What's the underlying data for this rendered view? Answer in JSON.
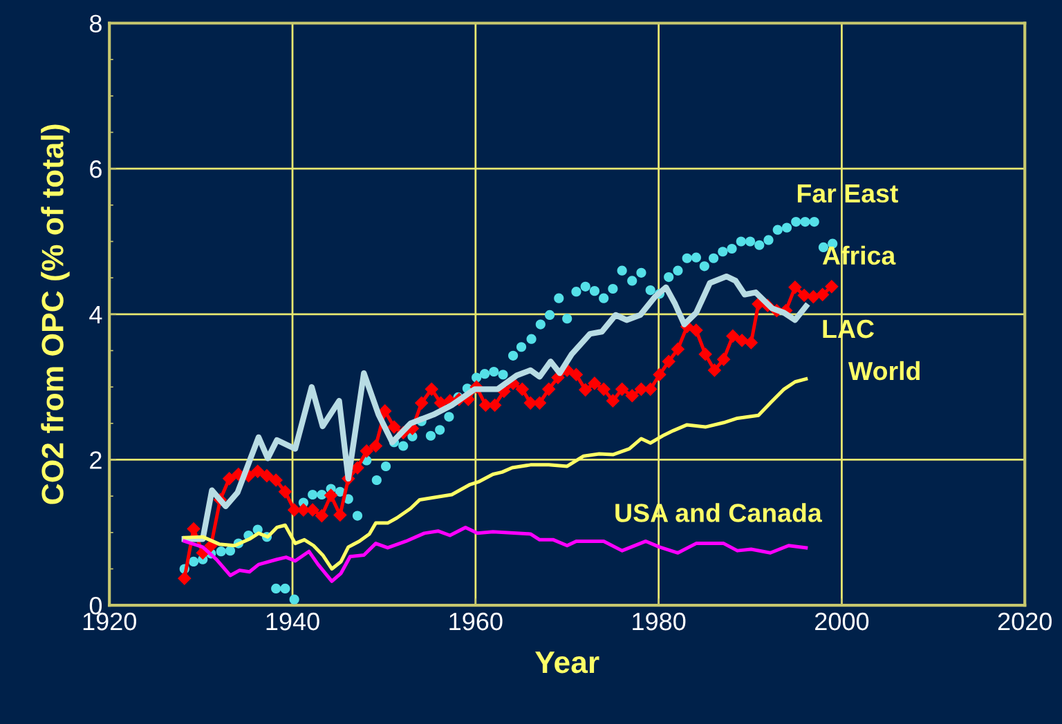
{
  "chart_data": {
    "type": "line",
    "xlabel": "Year",
    "ylabel": "CO2 from OPC (% of total)",
    "xlim": [
      1920,
      2020
    ],
    "xticks": [
      1920,
      1940,
      1960,
      1980,
      2000,
      2020
    ],
    "ylim": [
      0,
      8
    ],
    "yticks": [
      0,
      2,
      4,
      6,
      8
    ],
    "grid": true,
    "legend": false,
    "series": [
      {
        "name": "Far East",
        "type": "scatter",
        "marker": "circle",
        "color": "#55e0e8",
        "x": [
          1928.2,
          1929.2,
          1930.2,
          1931.1,
          1932.2,
          1933.2,
          1934.1,
          1935.2,
          1936.2,
          1937.2,
          1938.2,
          1939.2,
          1940.2,
          1941.2,
          1942.2,
          1943.2,
          1944.2,
          1945.2,
          1946.1,
          1947.1,
          1948.1,
          1949.2,
          1950.2,
          1951.1,
          1952.1,
          1953.1,
          1954.1,
          1955.1,
          1956.1,
          1957.1,
          1958.1,
          1959.1,
          1960.1,
          1961.0,
          1962.0,
          1963.0,
          1964.1,
          1965.0,
          1966.1,
          1967.1,
          1968.1,
          1969.1,
          1970,
          1971,
          1972,
          1973,
          1974,
          1975,
          1976,
          1977.1,
          1978.1,
          1979.1,
          1980.1,
          1981.1,
          1982.1,
          1983.1,
          1984.1,
          1985,
          1986,
          1987,
          1988,
          1989,
          1990,
          1991,
          1992,
          1993,
          1994,
          1995,
          1996,
          1997,
          1998,
          1999
        ],
        "values": [
          0.5,
          0.6,
          0.63,
          0.71,
          0.74,
          0.75,
          0.85,
          0.96,
          1.04,
          0.94,
          0.23,
          0.23,
          0.08,
          1.41,
          1.52,
          1.52,
          1.6,
          1.56,
          1.46,
          1.23,
          1.99,
          1.72,
          1.91,
          2.24,
          2.19,
          2.32,
          2.53,
          2.33,
          2.41,
          2.59,
          2.86,
          2.98,
          3.13,
          3.18,
          3.21,
          3.17,
          3.43,
          3.55,
          3.66,
          3.86,
          3.99,
          4.22,
          3.94,
          4.31,
          4.38,
          4.32,
          4.22,
          4.35,
          4.6,
          4.46,
          4.57,
          4.33,
          4.28,
          4.51,
          4.6,
          4.77,
          4.78,
          4.66,
          4.77,
          4.86,
          4.9,
          5.0,
          5.0,
          4.95,
          5.02,
          5.16,
          5.19,
          5.27,
          5.27,
          5.27,
          4.92,
          4.97
        ]
      },
      {
        "name": "Africa",
        "marker": "diamond",
        "color": "#ff0000",
        "x": [
          1928.2,
          1929.2,
          1930.2,
          1931.1,
          1932.1,
          1933.1,
          1934.1,
          1935.2,
          1936.2,
          1937.2,
          1938.2,
          1939.2,
          1940.2,
          1941.2,
          1942.2,
          1943.2,
          1944.2,
          1945.2,
          1946.1,
          1947.1,
          1948.1,
          1949.1,
          1950.1,
          1951.1,
          1952.1,
          1953.1,
          1954.1,
          1955.2,
          1956.2,
          1957.2,
          1958.2,
          1959.2,
          1960.1,
          1961.1,
          1962.1,
          1963.1,
          1964.1,
          1965.1,
          1966,
          1967,
          1968,
          1969,
          1970,
          1971,
          1972,
          1973,
          1974,
          1975,
          1976,
          1977.1,
          1978.1,
          1979.1,
          1980.1,
          1981.1,
          1982.1,
          1983.1,
          1984.1,
          1985.1,
          1986.1,
          1987.1,
          1988.1,
          1989.1,
          1990.1,
          1990.9,
          1991.9,
          1992.9,
          1993.9,
          1994.9,
          1995.9,
          1996.9,
          1997.9,
          1998.9
        ],
        "values": [
          0.37,
          1.05,
          0.72,
          0.82,
          1.45,
          1.74,
          1.8,
          1.78,
          1.84,
          1.78,
          1.72,
          1.56,
          1.31,
          1.31,
          1.31,
          1.23,
          1.51,
          1.24,
          1.74,
          1.89,
          2.12,
          2.19,
          2.67,
          2.45,
          2.37,
          2.43,
          2.78,
          2.97,
          2.78,
          2.81,
          2.83,
          2.83,
          3.0,
          2.75,
          2.75,
          2.94,
          3.05,
          2.97,
          2.78,
          2.78,
          2.97,
          3.13,
          3.23,
          3.17,
          2.96,
          3.05,
          2.97,
          2.81,
          2.97,
          2.88,
          2.97,
          2.97,
          3.17,
          3.35,
          3.52,
          3.83,
          3.78,
          3.45,
          3.23,
          3.38,
          3.7,
          3.64,
          3.61,
          4.14,
          4.12,
          4.05,
          4.05,
          4.37,
          4.26,
          4.24,
          4.27,
          4.38
        ]
      },
      {
        "name": "LAC",
        "marker": "none",
        "color": "#b8dce4",
        "x": [
          1928.2,
          1930.2,
          1931.2,
          1932.7,
          1934,
          1936.3,
          1937.3,
          1938.3,
          1940.3,
          1942.1,
          1943.3,
          1945.1,
          1946.1,
          1947.8,
          1949.4,
          1950.9,
          1952.9,
          1955.4,
          1957.4,
          1959.9,
          1962.4,
          1964.5,
          1966,
          1967,
          1968.2,
          1969.2,
          1970.5,
          1972.5,
          1973.8,
          1975.3,
          1976.5,
          1978,
          1979.6,
          1980.8,
          1981.8,
          1982.8,
          1984.1,
          1985.6,
          1987.4,
          1988.4,
          1989.4,
          1990.6,
          1992.4,
          1993.7,
          1994.9,
          1996.1
        ],
        "values": [
          0.91,
          0.91,
          1.58,
          1.36,
          1.55,
          2.31,
          2.02,
          2.27,
          2.15,
          3.0,
          2.46,
          2.81,
          1.74,
          3.19,
          2.62,
          2.24,
          2.5,
          2.62,
          2.75,
          2.97,
          2.97,
          3.16,
          3.23,
          3.14,
          3.35,
          3.19,
          3.45,
          3.73,
          3.76,
          3.99,
          3.92,
          3.99,
          4.24,
          4.37,
          4.14,
          3.86,
          4.02,
          4.43,
          4.52,
          4.46,
          4.27,
          4.3,
          4.08,
          4.02,
          3.92,
          4.11
        ]
      },
      {
        "name": "World",
        "marker": "none",
        "color": "#ffff66",
        "x": [
          1928.2,
          1930.2,
          1932,
          1933.7,
          1935.3,
          1936.3,
          1937.3,
          1938.3,
          1939.2,
          1940.3,
          1941.3,
          1942.3,
          1943.3,
          1944.3,
          1945.3,
          1946.1,
          1947.3,
          1948.4,
          1949.1,
          1950.4,
          1951.4,
          1952.9,
          1953.9,
          1955.4,
          1957.4,
          1959.4,
          1960.4,
          1961.9,
          1962.9,
          1964,
          1966,
          1968,
          1970,
          1971.8,
          1973.5,
          1975,
          1976.8,
          1978.1,
          1979.1,
          1980.6,
          1981.6,
          1983.1,
          1985.1,
          1987.1,
          1988.6,
          1990.9,
          1992.2,
          1993.7,
          1994.9,
          1996.1
        ],
        "values": [
          0.93,
          0.94,
          0.84,
          0.82,
          0.91,
          0.99,
          0.94,
          1.07,
          1.1,
          0.85,
          0.9,
          0.82,
          0.69,
          0.5,
          0.6,
          0.8,
          0.88,
          0.98,
          1.13,
          1.13,
          1.2,
          1.33,
          1.45,
          1.48,
          1.52,
          1.66,
          1.7,
          1.8,
          1.83,
          1.89,
          1.93,
          1.93,
          1.91,
          2.05,
          2.08,
          2.07,
          2.15,
          2.29,
          2.23,
          2.34,
          2.4,
          2.48,
          2.45,
          2.51,
          2.57,
          2.61,
          2.78,
          2.97,
          3.07,
          3.11
        ]
      },
      {
        "name": "USA and Canada",
        "marker": "none",
        "color": "#ff00ff",
        "x": [
          1928.2,
          1930.2,
          1931.7,
          1933.2,
          1934.2,
          1935.3,
          1936.3,
          1938.3,
          1939.3,
          1940.3,
          1941.8,
          1942.8,
          1944.3,
          1945.3,
          1946.3,
          1947.8,
          1949.1,
          1950.4,
          1952.4,
          1954.4,
          1955.9,
          1957.2,
          1958.9,
          1960.2,
          1961.9,
          1966,
          1967,
          1968.5,
          1970,
          1971,
          1974,
          1976,
          1978.6,
          1980.1,
          1982.1,
          1984.1,
          1987.1,
          1988.6,
          1990.1,
          1992.2,
          1994.2,
          1996.1
        ],
        "values": [
          0.88,
          0.8,
          0.63,
          0.41,
          0.48,
          0.46,
          0.56,
          0.63,
          0.66,
          0.61,
          0.74,
          0.56,
          0.33,
          0.44,
          0.67,
          0.69,
          0.85,
          0.79,
          0.88,
          0.99,
          1.02,
          0.96,
          1.07,
          0.99,
          1.01,
          0.98,
          0.9,
          0.9,
          0.82,
          0.88,
          0.88,
          0.75,
          0.88,
          0.8,
          0.72,
          0.85,
          0.85,
          0.75,
          0.77,
          0.72,
          0.82,
          0.79
        ]
      }
    ]
  }
}
